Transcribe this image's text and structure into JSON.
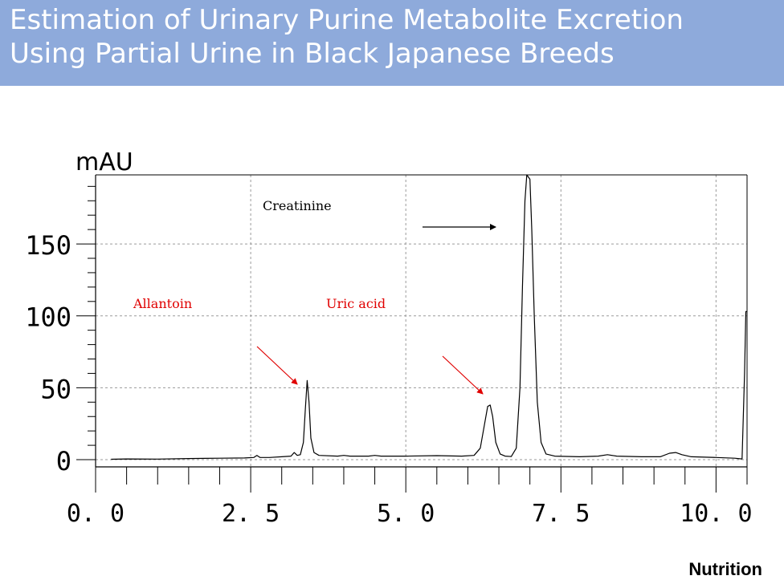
{
  "header": {
    "title_line1": "Estimation of Urinary Purine Metabolite Excretion",
    "title_line2": "Using Partial Urine in Black Japanese Breeds"
  },
  "footer": {
    "label": "Nutrition"
  },
  "colors": {
    "header_bg": "#8eaadb",
    "header_text": "#ffffff",
    "trace": "#000000",
    "annotation_red": "#e00000",
    "grid": "#9a9a9a"
  },
  "chart_data": {
    "type": "line",
    "title": "",
    "xlabel": "",
    "ylabel": "mAU",
    "xlim": [
      0,
      10.5
    ],
    "ylim": [
      -5,
      198
    ],
    "x_ticks": [
      0,
      2.5,
      5,
      7.5,
      10
    ],
    "x_tick_labels": [
      "0. 0",
      "2. 5",
      "5. 0",
      "7. 5",
      "10. 0"
    ],
    "y_ticks": [
      0,
      50,
      100,
      150
    ],
    "y_tick_labels": [
      "0",
      "50",
      "100",
      "150"
    ],
    "grid": "dashed",
    "annotations": [
      {
        "text": "Allantoin",
        "color": "#e00000",
        "peak_x": 3.4,
        "peak_y": 55
      },
      {
        "text": "Uric acid",
        "color": "#e00000",
        "peak_x": 6.35,
        "peak_y": 38
      },
      {
        "text": "Creatinine",
        "color": "#000000",
        "peak_x": 6.95,
        "peak_y": 198
      }
    ],
    "series": [
      {
        "points": [
          [
            0.25,
            0.3
          ],
          [
            0.5,
            0.5
          ],
          [
            1.0,
            0.4
          ],
          [
            1.5,
            0.8
          ],
          [
            2.0,
            1.0
          ],
          [
            2.4,
            1.2
          ],
          [
            2.55,
            1.5
          ],
          [
            2.6,
            3.0
          ],
          [
            2.65,
            1.5
          ],
          [
            2.8,
            1.5
          ],
          [
            3.0,
            2.0
          ],
          [
            3.15,
            2.5
          ],
          [
            3.2,
            5.0
          ],
          [
            3.25,
            3.0
          ],
          [
            3.3,
            3.5
          ],
          [
            3.35,
            12
          ],
          [
            3.38,
            35
          ],
          [
            3.41,
            55
          ],
          [
            3.44,
            40
          ],
          [
            3.47,
            15
          ],
          [
            3.52,
            5
          ],
          [
            3.6,
            3
          ],
          [
            3.9,
            2.5
          ],
          [
            4.0,
            3.0
          ],
          [
            4.1,
            2.5
          ],
          [
            4.4,
            2.5
          ],
          [
            4.5,
            3.0
          ],
          [
            4.6,
            2.5
          ],
          [
            5.0,
            2.5
          ],
          [
            5.5,
            2.8
          ],
          [
            5.9,
            2.5
          ],
          [
            6.1,
            3
          ],
          [
            6.2,
            8
          ],
          [
            6.27,
            25
          ],
          [
            6.32,
            37
          ],
          [
            6.36,
            38
          ],
          [
            6.4,
            30
          ],
          [
            6.45,
            12
          ],
          [
            6.52,
            4
          ],
          [
            6.6,
            2.5
          ],
          [
            6.7,
            2.2
          ],
          [
            6.78,
            8
          ],
          [
            6.84,
            50
          ],
          [
            6.88,
            120
          ],
          [
            6.92,
            180
          ],
          [
            6.95,
            198
          ],
          [
            7.0,
            195
          ],
          [
            7.03,
            160
          ],
          [
            7.07,
            100
          ],
          [
            7.12,
            40
          ],
          [
            7.18,
            12
          ],
          [
            7.26,
            4
          ],
          [
            7.4,
            2.5
          ],
          [
            7.8,
            2.0
          ],
          [
            8.1,
            2.5
          ],
          [
            8.25,
            3.5
          ],
          [
            8.4,
            2.5
          ],
          [
            8.8,
            2.0
          ],
          [
            9.1,
            2.0
          ],
          [
            9.25,
            4.5
          ],
          [
            9.35,
            5
          ],
          [
            9.45,
            3.5
          ],
          [
            9.6,
            2.0
          ],
          [
            10.0,
            1.5
          ],
          [
            10.3,
            1.0
          ],
          [
            10.42,
            0.5
          ],
          [
            10.46,
            60
          ],
          [
            10.48,
            103
          ],
          [
            10.5,
            103
          ]
        ]
      }
    ]
  }
}
